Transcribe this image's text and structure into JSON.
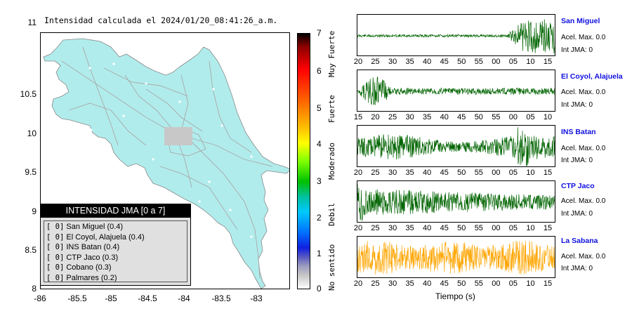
{
  "map": {
    "title": "Intensidad calculada el 2024/01/20_08:41:26_a.m.",
    "y_ticks": [
      "11",
      "10.5",
      "10",
      "9.5",
      "9",
      "8.5",
      "8"
    ],
    "x_ticks": [
      "-86",
      "-85.5",
      "-85",
      "-84.5",
      "-84",
      "-83.5",
      "-83"
    ],
    "land_color": "#b1ecec",
    "road_color": "#a8a8a8"
  },
  "legend": {
    "title": "INTENSIDAD JMA [0 a 7]",
    "items": [
      {
        "bracket": "[ 0]",
        "label": "San Miguel (0.4)"
      },
      {
        "bracket": "[ 0]",
        "label": "El Coyol, Alajuela (0.4)"
      },
      {
        "bracket": "[ 0]",
        "label": "INS Batan (0.4)"
      },
      {
        "bracket": "[ 0]",
        "label": "CTP Jaco (0.3)"
      },
      {
        "bracket": "[ 0]",
        "label": "Cobano (0.3)"
      },
      {
        "bracket": "[ 0]",
        "label": "Palmares (0.2)"
      }
    ]
  },
  "colorbar": {
    "ticks": [
      "7",
      "6",
      "5",
      "4",
      "3",
      "2",
      "1",
      "0"
    ],
    "labels": [
      "Muy Fuerte",
      "Fuerte",
      "Moderado",
      "Debil",
      "No sentido"
    ]
  },
  "stations": [
    {
      "name": "San Miguel",
      "accel": "Acel. Max. 0.0",
      "jma": "Int JMA: 0",
      "color": "#006400",
      "ticks": [
        "20",
        "25",
        "30",
        "35",
        "40",
        "45",
        "50",
        "55",
        "00",
        "05",
        "10",
        "15"
      ]
    },
    {
      "name": "El Coyol, Alajuela",
      "accel": "Acel. Max. 0.0",
      "jma": "Int JMA: 0",
      "color": "#006400",
      "ticks": [
        "15",
        "20",
        "25",
        "30",
        "35",
        "40",
        "45",
        "50",
        "55",
        "00",
        "05",
        "10"
      ]
    },
    {
      "name": "INS Batan",
      "accel": "Acel. Max. 0.0",
      "jma": "Int JMA: 0",
      "color": "#006400",
      "ticks": [
        "20",
        "25",
        "30",
        "35",
        "40",
        "45",
        "50",
        "55",
        "00",
        "05",
        "10",
        "15"
      ]
    },
    {
      "name": "CTP Jaco",
      "accel": "Acel. Max. 0.0",
      "jma": "Int JMA: 0",
      "color": "#006400",
      "ticks": [
        "20",
        "25",
        "30",
        "35",
        "40",
        "45",
        "50",
        "55",
        "00",
        "05",
        "10",
        "15"
      ]
    },
    {
      "name": "La Sabana",
      "accel": "Acel. Max. 0.0",
      "jma": "Int JMA: 0",
      "color": "#ffa500",
      "ticks": [
        "20",
        "25",
        "30",
        "35",
        "40",
        "45",
        "50",
        "55",
        "00",
        "05",
        "10",
        "15"
      ]
    }
  ],
  "x_axis_label": "Tiempo (s)"
}
